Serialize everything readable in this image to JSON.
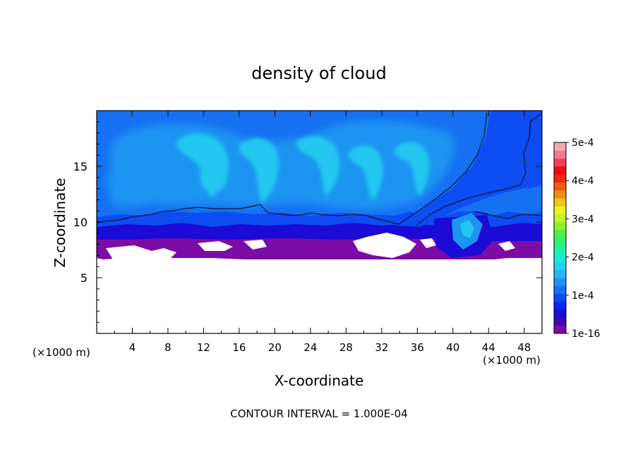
{
  "chart_data": {
    "type": "heatmap",
    "title": "density of cloud",
    "xlabel": "X-coordinate",
    "ylabel": "Z-coordinate",
    "x_unit_left": "(×1000 m)",
    "x_unit_right": "(×1000 m)",
    "xlim": [
      0,
      50
    ],
    "ylim": [
      0,
      20
    ],
    "xticks": [
      4,
      8,
      12,
      16,
      20,
      24,
      28,
      32,
      36,
      40,
      44,
      48
    ],
    "yticks": [
      5,
      10,
      15
    ],
    "footer": "CONTOUR INTERVAL = 1.000E-04",
    "colorbar": {
      "min": 1e-16,
      "max": 0.0005,
      "labels": [
        "1e-16",
        "1e-4",
        "2e-4",
        "3e-4",
        "4e-4",
        "5e-4"
      ],
      "label_values": [
        0,
        0.0001,
        0.0002,
        0.0003,
        0.0004,
        0.0005
      ],
      "colors": [
        "#7b0da6",
        "#3e08b8",
        "#1a0bd6",
        "#0828e8",
        "#0c4cf0",
        "#1670f2",
        "#1f95f2",
        "#22b8f0",
        "#1ed6f0",
        "#1ee8d8",
        "#1ff0a8",
        "#2ef078",
        "#4cf04a",
        "#8af030",
        "#c8f028",
        "#f0f020",
        "#f0c418",
        "#f08c14",
        "#f05a10",
        "#f0280e",
        "#e80e16",
        "#f0405a",
        "#f07a8c",
        "#f8a8b0"
      ]
    },
    "field_colors": {
      "purple": "#7b0da6",
      "deep_blue": "#1a0bd6",
      "blue": "#0c4cf0",
      "mid_blue": "#1670f2",
      "light_blue": "#1f95f2",
      "cyan": "#22c8f0"
    }
  }
}
